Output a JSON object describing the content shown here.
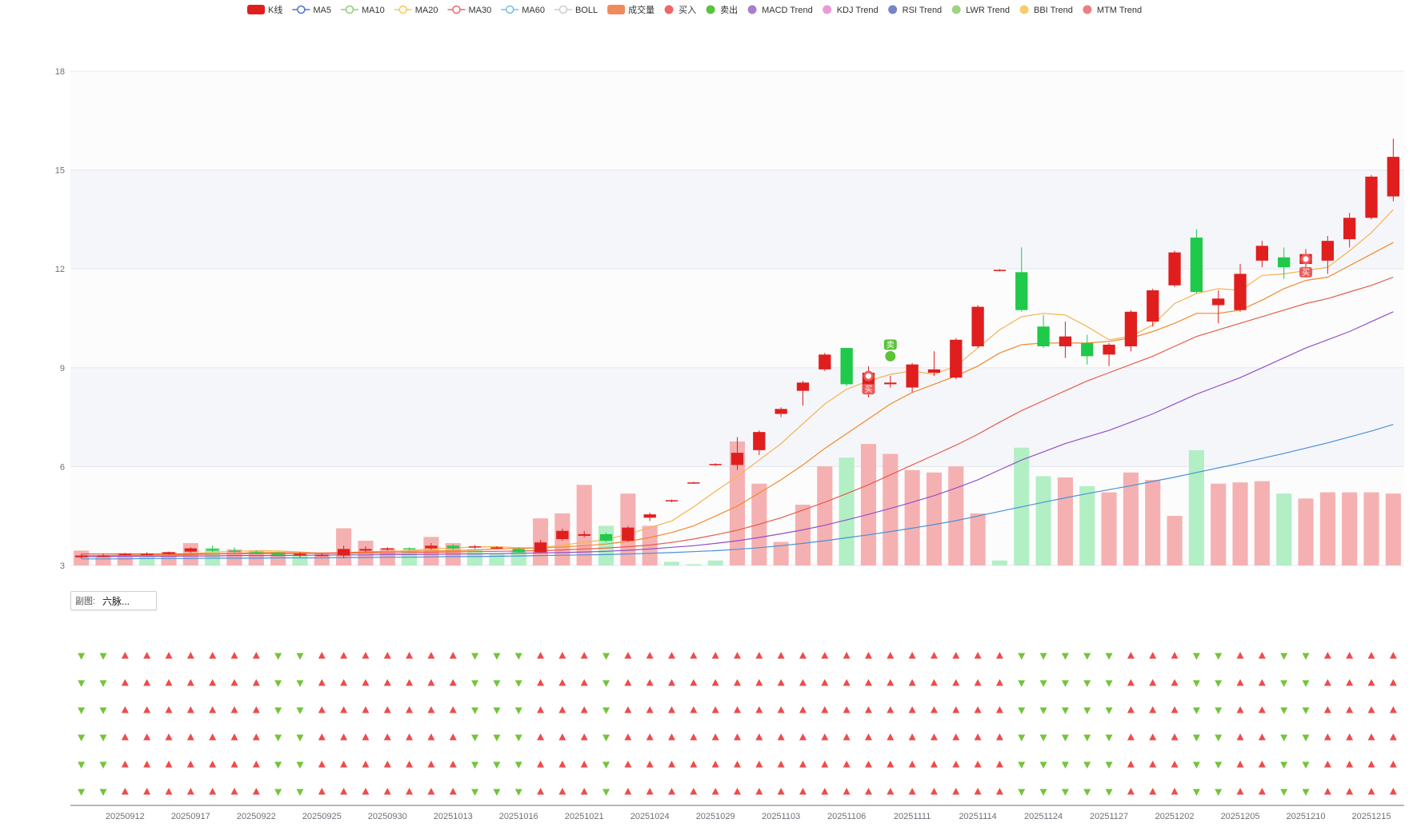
{
  "legend": [
    {
      "label": "K线",
      "kind": "candle",
      "color": "#e01e1e"
    },
    {
      "label": "MA5",
      "kind": "line",
      "color": "#5470c6"
    },
    {
      "label": "MA10",
      "kind": "line",
      "color": "#91cc75"
    },
    {
      "label": "MA20",
      "kind": "line",
      "color": "#fac858"
    },
    {
      "label": "MA30",
      "kind": "line",
      "color": "#ee6666"
    },
    {
      "label": "MA60",
      "kind": "line",
      "color": "#73c0de"
    },
    {
      "label": "BOLL",
      "kind": "line",
      "color": "#cccccc",
      "inactive": true
    },
    {
      "label": "成交量",
      "kind": "bar",
      "color": "#f08a5d"
    },
    {
      "label": "买入",
      "kind": "dot",
      "color": "#ee6666"
    },
    {
      "label": "卖出",
      "kind": "dot",
      "color": "#5cc23a"
    },
    {
      "label": "MACD Trend",
      "kind": "dot",
      "color": "#a97ec9"
    },
    {
      "label": "KDJ Trend",
      "kind": "dot",
      "color": "#ea9bd4"
    },
    {
      "label": "RSI Trend",
      "kind": "dot",
      "color": "#7585c9"
    },
    {
      "label": "LWR Trend",
      "kind": "dot",
      "color": "#9fd486"
    },
    {
      "label": "BBI Trend",
      "kind": "dot",
      "color": "#f7cd6b"
    },
    {
      "label": "MTM Trend",
      "kind": "dot",
      "color": "#ec7f7f"
    }
  ],
  "sub_selector": {
    "label": "副图:",
    "value": "六脉..."
  },
  "colors": {
    "up": "#e01e1e",
    "down": "#1fc94a",
    "vol_up": "#f5b1b1",
    "vol_down": "#b2efc4",
    "ma_orange_light": "#f5b350",
    "ma_orange": "#f08a2b",
    "ma_red": "#e85b4b",
    "ma_purple": "#9350c8",
    "ma_blue": "#4a90d9",
    "tri_up": "#ee4b4b",
    "tri_down": "#73c43a"
  },
  "chart_data": {
    "type": "candlestick",
    "title": "",
    "ylim": [
      3,
      18
    ],
    "yticks": [
      "18",
      "15",
      "12",
      "9",
      "6",
      "3"
    ],
    "x_labels": [
      "20250912",
      "20250917",
      "20250922",
      "20250925",
      "20250930",
      "20251013",
      "20251016",
      "20251021",
      "20251024",
      "20251029",
      "20251103",
      "20251106",
      "20251111",
      "20251114",
      "20251124",
      "20251127",
      "20251202",
      "20251205",
      "20251210",
      "20251215"
    ],
    "x_label_index": [
      2,
      5,
      8,
      11,
      14,
      17,
      20,
      23,
      26,
      29,
      32,
      35,
      38,
      41,
      44,
      47,
      50,
      53,
      56,
      59
    ],
    "candles": [
      [
        3.25,
        3.3,
        3.2,
        3.35
      ],
      [
        3.3,
        3.3,
        3.25,
        3.35
      ],
      [
        3.32,
        3.35,
        3.3,
        3.38
      ],
      [
        3.35,
        3.35,
        3.3,
        3.4
      ],
      [
        3.35,
        3.4,
        3.32,
        3.42
      ],
      [
        3.42,
        3.52,
        3.38,
        3.55
      ],
      [
        3.5,
        3.45,
        3.4,
        3.6
      ],
      [
        3.45,
        3.42,
        3.35,
        3.55
      ],
      [
        3.4,
        3.38,
        3.35,
        3.45
      ],
      [
        3.38,
        3.32,
        3.28,
        3.42
      ],
      [
        3.3,
        3.35,
        3.25,
        3.4
      ],
      [
        3.32,
        3.32,
        3.28,
        3.38
      ],
      [
        3.3,
        3.5,
        3.22,
        3.6
      ],
      [
        3.45,
        3.5,
        3.4,
        3.58
      ],
      [
        3.5,
        3.52,
        3.45,
        3.55
      ],
      [
        3.52,
        3.5,
        3.45,
        3.55
      ],
      [
        3.52,
        3.6,
        3.48,
        3.68
      ],
      [
        3.6,
        3.52,
        3.48,
        3.65
      ],
      [
        3.55,
        3.58,
        3.5,
        3.62
      ],
      [
        3.55,
        3.55,
        3.5,
        3.58
      ],
      [
        3.5,
        3.4,
        3.35,
        3.55
      ],
      [
        3.4,
        3.7,
        3.38,
        3.78
      ],
      [
        3.8,
        4.05,
        3.75,
        4.12
      ],
      [
        3.9,
        3.95,
        3.85,
        4.05
      ],
      [
        3.95,
        3.75,
        3.7,
        4.0
      ],
      [
        3.75,
        4.15,
        3.72,
        4.2
      ],
      [
        4.45,
        4.55,
        4.35,
        4.6
      ],
      [
        4.95,
        4.98,
        4.92,
        5.0
      ],
      [
        5.5,
        5.52,
        5.48,
        5.54
      ],
      [
        6.05,
        6.08,
        6.02,
        6.1
      ],
      [
        6.05,
        6.42,
        5.9,
        6.9
      ],
      [
        6.5,
        7.05,
        6.35,
        7.1
      ],
      [
        7.6,
        7.75,
        7.5,
        7.8
      ],
      [
        8.3,
        8.55,
        7.85,
        8.6
      ],
      [
        8.95,
        9.4,
        8.9,
        9.45
      ],
      [
        9.6,
        8.5,
        8.45,
        9.6
      ],
      [
        8.35,
        8.85,
        8.1,
        9.05
      ],
      [
        8.5,
        8.55,
        8.4,
        8.75
      ],
      [
        8.4,
        9.1,
        8.25,
        9.15
      ],
      [
        8.85,
        8.95,
        8.75,
        9.5
      ],
      [
        8.7,
        9.85,
        8.65,
        9.9
      ],
      [
        9.65,
        10.85,
        9.6,
        10.9
      ],
      [
        11.95,
        11.97,
        11.92,
        11.99
      ],
      [
        11.9,
        10.75,
        10.7,
        12.65
      ],
      [
        10.25,
        9.65,
        9.6,
        10.6
      ],
      [
        9.65,
        9.95,
        9.3,
        10.4
      ],
      [
        9.75,
        9.35,
        9.1,
        10.0
      ],
      [
        9.4,
        9.7,
        9.05,
        9.75
      ],
      [
        9.65,
        10.7,
        9.5,
        10.75
      ],
      [
        10.4,
        11.35,
        10.25,
        11.4
      ],
      [
        11.5,
        12.5,
        11.45,
        12.55
      ],
      [
        12.95,
        11.3,
        11.25,
        13.2
      ],
      [
        10.9,
        11.1,
        10.35,
        11.35
      ],
      [
        10.75,
        11.85,
        10.7,
        12.15
      ],
      [
        12.25,
        12.7,
        12.05,
        12.85
      ],
      [
        12.35,
        12.05,
        11.7,
        12.65
      ],
      [
        12.15,
        12.45,
        11.9,
        12.6
      ],
      [
        12.25,
        12.85,
        11.85,
        13.0
      ],
      [
        12.9,
        13.55,
        12.65,
        13.7
      ],
      [
        13.55,
        14.8,
        13.5,
        14.85
      ],
      [
        14.2,
        15.4,
        14.05,
        15.95
      ]
    ],
    "volume_height": [
      0.12,
      0.07,
      0.1,
      0.1,
      0.11,
      0.18,
      0.14,
      0.13,
      0.12,
      0.11,
      0.1,
      0.1,
      0.3,
      0.2,
      0.14,
      0.12,
      0.23,
      0.18,
      0.13,
      0.1,
      0.12,
      0.38,
      0.42,
      0.65,
      0.32,
      0.58,
      0.32,
      0.03,
      0.01,
      0.04,
      1.0,
      0.66,
      0.19,
      0.49,
      0.8,
      0.87,
      0.98,
      0.9,
      0.77,
      0.75,
      0.8,
      0.42,
      0.04,
      0.95,
      0.72,
      0.71,
      0.64,
      0.59,
      0.75,
      0.69,
      0.4,
      0.93,
      0.66,
      0.67,
      0.68,
      0.58,
      0.54,
      0.59,
      0.59,
      0.59,
      0.58
    ],
    "volume_up": [
      true,
      true,
      true,
      false,
      true,
      true,
      false,
      true,
      true,
      true,
      false,
      true,
      true,
      true,
      true,
      false,
      true,
      true,
      false,
      false,
      false,
      true,
      true,
      true,
      false,
      true,
      true,
      false,
      false,
      false,
      true,
      true,
      true,
      true,
      true,
      false,
      true,
      true,
      true,
      true,
      true,
      true,
      false,
      false,
      false,
      true,
      false,
      true,
      true,
      true,
      true,
      false,
      true,
      true,
      true,
      false,
      true,
      true,
      true,
      true,
      true
    ],
    "ma_lines": [
      {
        "name": "MA5",
        "color_key": "ma_orange_light",
        "values": [
          3.3,
          3.3,
          3.31,
          3.32,
          3.33,
          3.36,
          3.4,
          3.43,
          3.45,
          3.44,
          3.41,
          3.37,
          3.37,
          3.39,
          3.42,
          3.45,
          3.5,
          3.53,
          3.56,
          3.57,
          3.54,
          3.54,
          3.62,
          3.7,
          3.79,
          3.95,
          4.15,
          4.35,
          4.78,
          5.25,
          5.7,
          6.2,
          6.7,
          7.3,
          7.9,
          8.35,
          8.6,
          8.8,
          8.9,
          8.8,
          9.05,
          9.6,
          10.15,
          10.55,
          10.65,
          10.6,
          10.25,
          9.85,
          9.95,
          10.3,
          10.95,
          11.25,
          11.4,
          11.35,
          11.8,
          11.85,
          11.95,
          12.05,
          12.55,
          13.1,
          13.8
        ]
      },
      {
        "name": "MA10",
        "color_key": "ma_orange",
        "values": [
          3.3,
          3.3,
          3.3,
          3.31,
          3.31,
          3.33,
          3.35,
          3.37,
          3.39,
          3.39,
          3.38,
          3.38,
          3.39,
          3.41,
          3.43,
          3.43,
          3.44,
          3.45,
          3.47,
          3.5,
          3.52,
          3.53,
          3.56,
          3.6,
          3.65,
          3.73,
          3.85,
          4.0,
          4.2,
          4.5,
          4.8,
          5.2,
          5.6,
          6.05,
          6.55,
          7.0,
          7.45,
          7.9,
          8.25,
          8.5,
          8.75,
          9.05,
          9.45,
          9.7,
          9.75,
          9.75,
          9.75,
          9.8,
          9.9,
          10.1,
          10.35,
          10.65,
          10.65,
          10.75,
          11.05,
          11.4,
          11.65,
          11.75,
          12.1,
          12.45,
          12.8
        ]
      },
      {
        "name": "MA20",
        "color_key": "ma_red",
        "values": [
          3.35,
          3.35,
          3.35,
          3.35,
          3.35,
          3.35,
          3.35,
          3.36,
          3.36,
          3.36,
          3.37,
          3.37,
          3.37,
          3.38,
          3.38,
          3.39,
          3.4,
          3.41,
          3.42,
          3.43,
          3.44,
          3.45,
          3.47,
          3.5,
          3.53,
          3.57,
          3.62,
          3.7,
          3.8,
          3.93,
          4.07,
          4.25,
          4.45,
          4.68,
          4.92,
          5.18,
          5.45,
          5.75,
          6.05,
          6.35,
          6.65,
          6.98,
          7.35,
          7.7,
          8.0,
          8.3,
          8.6,
          8.85,
          9.1,
          9.35,
          9.65,
          9.95,
          10.15,
          10.35,
          10.55,
          10.75,
          10.95,
          11.1,
          11.3,
          11.5,
          11.75
        ]
      },
      {
        "name": "MA30",
        "color_key": "ma_purple",
        "values": [
          3.27,
          3.27,
          3.28,
          3.28,
          3.28,
          3.29,
          3.29,
          3.3,
          3.3,
          3.3,
          3.31,
          3.31,
          3.32,
          3.32,
          3.33,
          3.33,
          3.34,
          3.35,
          3.35,
          3.36,
          3.37,
          3.38,
          3.39,
          3.41,
          3.43,
          3.46,
          3.5,
          3.55,
          3.6,
          3.67,
          3.75,
          3.85,
          3.96,
          4.08,
          4.22,
          4.38,
          4.55,
          4.73,
          4.92,
          5.12,
          5.35,
          5.6,
          5.9,
          6.2,
          6.45,
          6.7,
          6.9,
          7.1,
          7.35,
          7.6,
          7.9,
          8.2,
          8.45,
          8.7,
          9.0,
          9.3,
          9.6,
          9.85,
          10.1,
          10.4,
          10.7
        ]
      },
      {
        "name": "MA60",
        "color_key": "ma_blue",
        "values": [
          3.2,
          3.2,
          3.2,
          3.21,
          3.21,
          3.21,
          3.22,
          3.22,
          3.22,
          3.23,
          3.23,
          3.23,
          3.24,
          3.24,
          3.25,
          3.25,
          3.26,
          3.27,
          3.27,
          3.28,
          3.29,
          3.3,
          3.31,
          3.32,
          3.33,
          3.35,
          3.37,
          3.39,
          3.42,
          3.45,
          3.49,
          3.54,
          3.6,
          3.67,
          3.75,
          3.84,
          3.93,
          4.03,
          4.13,
          4.24,
          4.36,
          4.5,
          4.64,
          4.78,
          4.92,
          5.05,
          5.18,
          5.3,
          5.42,
          5.55,
          5.68,
          5.82,
          5.96,
          6.1,
          6.25,
          6.4,
          6.56,
          6.72,
          6.9,
          7.08,
          7.28
        ]
      }
    ],
    "signals": [
      {
        "index": 36,
        "type": "买入",
        "text": "买",
        "y": 8.75
      },
      {
        "index": 37,
        "type": "卖出",
        "text": "卖",
        "y": 9.35
      },
      {
        "index": 56,
        "type": "买入",
        "text": "买",
        "y": 12.3
      }
    ],
    "sub_rows": 6,
    "trend_up": [
      false,
      false,
      true,
      true,
      true,
      true,
      true,
      true,
      true,
      false,
      false,
      true,
      true,
      true,
      true,
      true,
      true,
      true,
      false,
      false,
      false,
      true,
      true,
      true,
      false,
      true,
      true,
      true,
      true,
      true,
      true,
      true,
      true,
      true,
      true,
      true,
      true,
      true,
      true,
      true,
      true,
      true,
      true,
      false,
      false,
      false,
      false,
      false,
      true,
      true,
      true,
      false,
      false,
      true,
      true,
      false,
      false,
      true,
      true,
      true,
      true
    ]
  }
}
